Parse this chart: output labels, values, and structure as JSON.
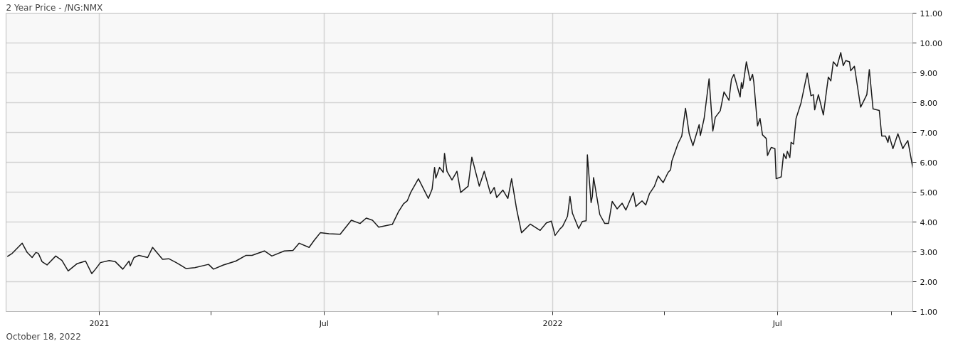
{
  "chart_data": {
    "type": "line",
    "title": "2 Year Price - /NG:NMX",
    "annotations": [
      "October 18, 2022"
    ],
    "xlim": [
      "2020-10-18",
      "2022-10-18"
    ],
    "xticks": [
      {
        "value": "2021-01-01",
        "label": "2021"
      },
      {
        "value": "2021-04-01",
        "label": null
      },
      {
        "value": "2021-07-01",
        "label": "Jul"
      },
      {
        "value": "2021-10-01",
        "label": null
      },
      {
        "value": "2022-01-01",
        "label": "2022"
      },
      {
        "value": "2022-04-01",
        "label": null
      },
      {
        "value": "2022-07-01",
        "label": "Jul"
      },
      {
        "value": "2022-10-01",
        "label": null
      }
    ],
    "ylim": [
      1,
      11
    ],
    "yticks": [
      {
        "value": 1,
        "label": "1.00"
      },
      {
        "value": 2,
        "label": "2.00"
      },
      {
        "value": 3,
        "label": "3.00"
      },
      {
        "value": 4,
        "label": "4.00"
      },
      {
        "value": 5,
        "label": "5.00"
      },
      {
        "value": 6,
        "label": "6.00"
      },
      {
        "value": 7,
        "label": "7.00"
      },
      {
        "value": 8,
        "label": "8.00"
      },
      {
        "value": 9,
        "label": "9.00"
      },
      {
        "value": 10,
        "label": "10.00"
      },
      {
        "value": 11,
        "label": "11.00"
      }
    ],
    "grid": true,
    "marker": "none",
    "line_style": "solid",
    "series": [
      {
        "color": "#1a1a1a",
        "x": [
          "2020-10-19",
          "2020-10-23",
          "2020-10-31",
          "2020-11-04",
          "2020-11-08",
          "2020-11-11",
          "2020-11-13",
          "2020-11-16",
          "2020-11-20",
          "2020-11-27",
          "2020-12-02",
          "2020-12-07",
          "2020-12-14",
          "2020-12-21",
          "2020-12-26",
          "2020-12-29",
          "2021-01-02",
          "2021-01-09",
          "2021-01-14",
          "2021-01-20",
          "2021-01-25",
          "2021-01-26",
          "2021-01-29",
          "2021-02-02",
          "2021-02-09",
          "2021-02-13",
          "2021-02-21",
          "2021-02-26",
          "2021-03-04",
          "2021-03-12",
          "2021-03-19",
          "2021-03-30",
          "2021-04-03",
          "2021-04-11",
          "2021-04-21",
          "2021-04-29",
          "2021-05-04",
          "2021-05-14",
          "2021-05-20",
          "2021-05-30",
          "2021-06-06",
          "2021-06-11",
          "2021-06-19",
          "2021-06-23",
          "2021-06-28",
          "2021-07-05",
          "2021-07-14",
          "2021-07-23",
          "2021-07-30",
          "2021-08-04",
          "2021-08-09",
          "2021-08-14",
          "2021-08-25",
          "2021-08-30",
          "2021-09-03",
          "2021-09-06",
          "2021-09-09",
          "2021-09-15",
          "2021-09-23",
          "2021-09-26",
          "2021-09-28",
          "2021-09-29",
          "2021-10-02",
          "2021-10-05",
          "2021-10-06",
          "2021-10-08",
          "2021-10-12",
          "2021-10-16",
          "2021-10-19",
          "2021-10-25",
          "2021-10-28",
          "2021-11-03",
          "2021-11-07",
          "2021-11-12",
          "2021-11-15",
          "2021-11-17",
          "2021-11-22",
          "2021-11-26",
          "2021-11-29",
          "2021-12-03",
          "2021-12-07",
          "2021-12-14",
          "2021-12-22",
          "2021-12-27",
          "2021-12-31",
          "2022-01-03",
          "2022-01-07",
          "2022-01-09",
          "2022-01-13",
          "2022-01-15",
          "2022-01-17",
          "2022-01-22",
          "2022-01-25",
          "2022-01-28",
          "2022-01-29",
          "2022-02-01",
          "2022-02-02",
          "2022-02-03",
          "2022-02-08",
          "2022-02-12",
          "2022-02-15",
          "2022-02-18",
          "2022-02-22",
          "2022-02-26",
          "2022-03-01",
          "2022-03-07",
          "2022-03-09",
          "2022-03-14",
          "2022-03-17",
          "2022-03-20",
          "2022-03-24",
          "2022-03-27",
          "2022-03-31",
          "2022-04-04",
          "2022-04-06",
          "2022-04-07",
          "2022-04-12",
          "2022-04-15",
          "2022-04-18",
          "2022-04-21",
          "2022-04-24",
          "2022-04-29",
          "2022-04-30",
          "2022-05-03",
          "2022-05-07",
          "2022-05-10",
          "2022-05-12",
          "2022-05-16",
          "2022-05-19",
          "2022-05-23",
          "2022-05-25",
          "2022-05-27",
          "2022-06-01",
          "2022-06-02",
          "2022-06-03",
          "2022-06-06",
          "2022-06-09",
          "2022-06-11",
          "2022-06-12",
          "2022-06-15",
          "2022-06-17",
          "2022-06-19",
          "2022-06-22",
          "2022-06-23",
          "2022-06-26",
          "2022-06-29",
          "2022-06-30",
          "2022-07-04",
          "2022-07-06",
          "2022-07-08",
          "2022-07-09",
          "2022-07-11",
          "2022-07-12",
          "2022-07-14",
          "2022-07-16",
          "2022-07-20",
          "2022-07-25",
          "2022-07-28",
          "2022-07-30",
          "2022-07-31",
          "2022-08-03",
          "2022-08-07",
          "2022-08-11",
          "2022-08-13",
          "2022-08-15",
          "2022-08-18",
          "2022-08-21",
          "2022-08-23",
          "2022-08-25",
          "2022-08-28",
          "2022-08-29",
          "2022-09-01",
          "2022-09-06",
          "2022-09-11",
          "2022-09-13",
          "2022-09-16",
          "2022-09-21",
          "2022-09-23",
          "2022-09-26",
          "2022-09-28",
          "2022-09-29",
          "2022-10-02",
          "2022-10-06",
          "2022-10-10",
          "2022-10-11",
          "2022-10-14",
          "2022-10-18"
        ],
        "values": [
          2.84,
          2.95,
          3.29,
          2.98,
          2.81,
          2.98,
          2.95,
          2.67,
          2.56,
          2.86,
          2.71,
          2.36,
          2.6,
          2.69,
          2.27,
          2.42,
          2.64,
          2.71,
          2.67,
          2.42,
          2.69,
          2.53,
          2.81,
          2.88,
          2.81,
          3.15,
          2.75,
          2.77,
          2.64,
          2.44,
          2.47,
          2.58,
          2.42,
          2.56,
          2.69,
          2.88,
          2.88,
          3.03,
          2.86,
          3.03,
          3.05,
          3.29,
          3.15,
          3.38,
          3.64,
          3.61,
          3.59,
          4.06,
          3.95,
          4.13,
          4.06,
          3.83,
          3.92,
          4.35,
          4.61,
          4.71,
          5.01,
          5.45,
          4.79,
          5.1,
          5.83,
          5.47,
          5.83,
          5.66,
          6.3,
          5.7,
          5.41,
          5.7,
          4.99,
          5.2,
          6.17,
          5.2,
          5.7,
          4.95,
          5.16,
          4.82,
          5.07,
          4.79,
          5.45,
          4.44,
          3.64,
          3.93,
          3.72,
          3.97,
          4.03,
          3.55,
          3.77,
          3.85,
          4.19,
          4.86,
          4.29,
          3.78,
          4.02,
          4.04,
          6.25,
          4.65,
          4.86,
          5.49,
          4.25,
          3.95,
          3.95,
          4.69,
          4.44,
          4.63,
          4.4,
          4.99,
          4.52,
          4.71,
          4.57,
          4.95,
          5.2,
          5.54,
          5.32,
          5.66,
          5.75,
          6.04,
          6.63,
          6.88,
          7.81,
          6.95,
          6.56,
          7.26,
          6.9,
          7.47,
          8.8,
          7.05,
          7.51,
          7.73,
          8.36,
          8.08,
          8.78,
          8.95,
          8.19,
          8.67,
          8.48,
          9.37,
          8.74,
          8.95,
          8.69,
          7.22,
          7.47,
          6.92,
          6.8,
          6.23,
          6.5,
          6.46,
          5.45,
          5.51,
          6.29,
          6.12,
          6.37,
          6.16,
          6.67,
          6.61,
          7.47,
          7.99,
          8.99,
          8.23,
          8.27,
          7.76,
          8.27,
          7.59,
          8.86,
          8.73,
          9.37,
          9.22,
          9.68,
          9.24,
          9.41,
          9.37,
          9.07,
          9.22,
          7.85,
          8.27,
          9.11,
          7.79,
          7.74,
          6.88,
          6.88,
          6.67,
          6.89,
          6.46,
          6.96,
          6.46,
          6.54,
          6.73,
          5.82
        ]
      }
    ]
  }
}
